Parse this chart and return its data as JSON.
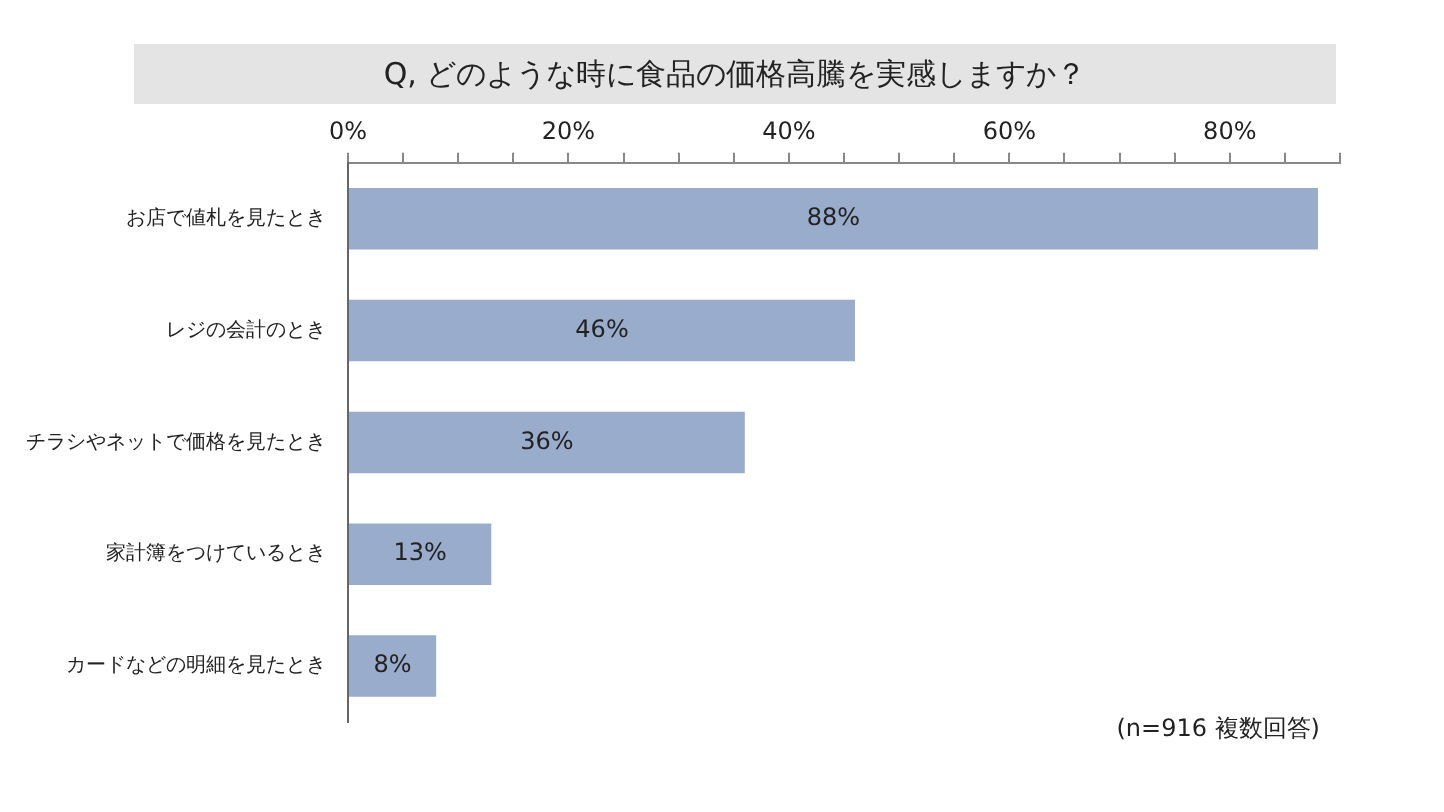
{
  "chart_data": {
    "type": "bar",
    "orientation": "horizontal",
    "title": "Q, どのような時に食品の価格高騰を実感しますか？",
    "categories": [
      "お店で値札を見たとき",
      "レジの会計のとき",
      "チラシやネットで価格を見たとき",
      "家計簿をつけているとき",
      "カードなどの明細を見たとき"
    ],
    "values": [
      88,
      46,
      36,
      13,
      8
    ],
    "value_labels": [
      "88%",
      "46%",
      "36%",
      "13%",
      "8%"
    ],
    "color": "#9aaccc",
    "xlim": [
      0,
      90
    ],
    "xticks": [
      {
        "value": 0,
        "label": "0%"
      },
      {
        "value": 5,
        "label": null
      },
      {
        "value": 10,
        "label": null
      },
      {
        "value": 15,
        "label": null
      },
      {
        "value": 20,
        "label": "20%"
      },
      {
        "value": 25,
        "label": null
      },
      {
        "value": 30,
        "label": null
      },
      {
        "value": 35,
        "label": null
      },
      {
        "value": 40,
        "label": "40%"
      },
      {
        "value": 45,
        "label": null
      },
      {
        "value": 50,
        "label": null
      },
      {
        "value": 55,
        "label": null
      },
      {
        "value": 60,
        "label": "60%"
      },
      {
        "value": 65,
        "label": null
      },
      {
        "value": 70,
        "label": null
      },
      {
        "value": 75,
        "label": null
      },
      {
        "value": 80,
        "label": "80%"
      },
      {
        "value": 85,
        "label": null
      },
      {
        "value": 90,
        "label": null
      }
    ],
    "annotations": [
      "(n=916 複数回答)"
    ],
    "grid": false,
    "legend": false
  }
}
